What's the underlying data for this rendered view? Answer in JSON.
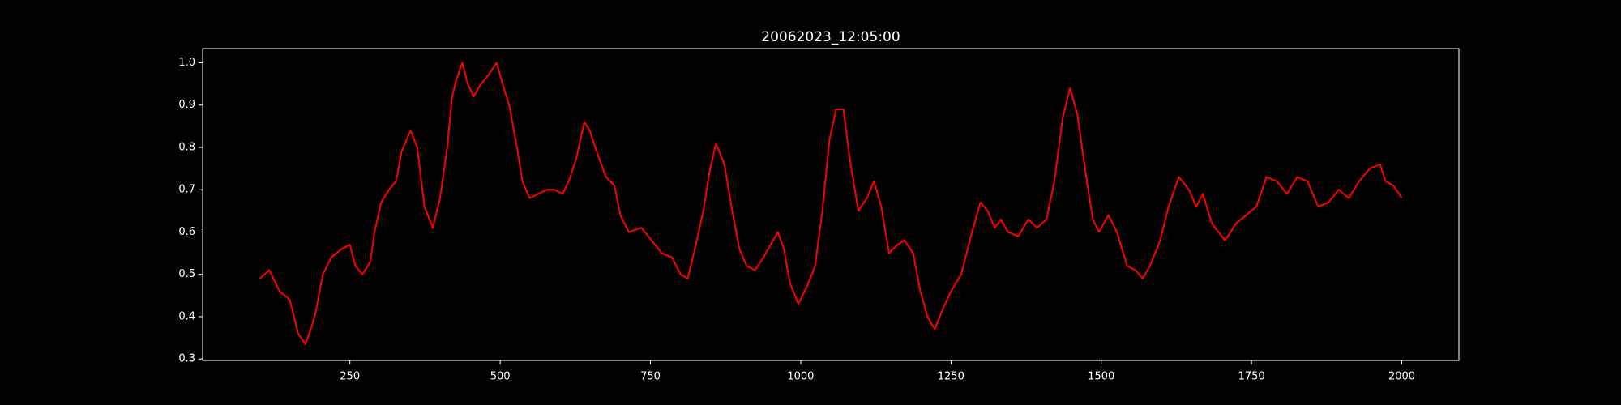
{
  "chart_data": {
    "type": "line",
    "title": "20062023_12:05:00",
    "x": [
      100,
      116,
      133,
      150,
      164,
      176,
      185,
      193,
      205,
      219,
      236,
      250,
      259,
      271,
      284,
      291,
      302,
      315,
      327,
      336,
      351,
      362,
      374,
      388,
      400,
      412,
      420,
      427,
      437,
      446,
      456,
      468,
      480,
      494,
      504,
      515,
      528,
      537,
      549,
      563,
      577,
      590,
      604,
      614,
      626,
      640,
      649,
      663,
      676,
      690,
      700,
      714,
      735,
      752,
      769,
      786,
      800,
      812,
      824,
      838,
      848,
      859,
      873,
      886,
      898,
      910,
      924,
      938,
      950,
      962,
      972,
      982,
      996,
      1010,
      1024,
      1036,
      1048,
      1059,
      1071,
      1082,
      1096,
      1110,
      1122,
      1134,
      1147,
      1161,
      1173,
      1187,
      1199,
      1211,
      1223,
      1237,
      1250,
      1267,
      1285,
      1299,
      1311,
      1323,
      1333,
      1345,
      1362,
      1379,
      1393,
      1409,
      1422,
      1436,
      1448,
      1460,
      1474,
      1486,
      1496,
      1512,
      1526,
      1543,
      1557,
      1569,
      1581,
      1598,
      1612,
      1629,
      1646,
      1658,
      1669,
      1684,
      1706,
      1724,
      1741,
      1758,
      1775,
      1792,
      1809,
      1826,
      1843,
      1861,
      1878,
      1895,
      1912,
      1929,
      1947,
      1964,
      1973,
      1986,
      2000
    ],
    "series": [
      {
        "color": "#ff0000",
        "values": [
          0.49,
          0.51,
          0.46,
          0.44,
          0.36,
          0.335,
          0.37,
          0.41,
          0.5,
          0.54,
          0.56,
          0.57,
          0.52,
          0.5,
          0.53,
          0.6,
          0.67,
          0.7,
          0.72,
          0.79,
          0.84,
          0.8,
          0.66,
          0.61,
          0.68,
          0.8,
          0.92,
          0.96,
          1.0,
          0.95,
          0.92,
          0.95,
          0.97,
          1.0,
          0.95,
          0.9,
          0.8,
          0.72,
          0.68,
          0.69,
          0.7,
          0.7,
          0.69,
          0.72,
          0.77,
          0.86,
          0.84,
          0.78,
          0.73,
          0.71,
          0.64,
          0.6,
          0.61,
          0.58,
          0.55,
          0.54,
          0.5,
          0.49,
          0.56,
          0.65,
          0.74,
          0.81,
          0.76,
          0.65,
          0.56,
          0.52,
          0.51,
          0.54,
          0.57,
          0.6,
          0.56,
          0.48,
          0.43,
          0.47,
          0.52,
          0.65,
          0.82,
          0.89,
          0.89,
          0.77,
          0.65,
          0.68,
          0.72,
          0.66,
          0.55,
          0.57,
          0.58,
          0.55,
          0.46,
          0.4,
          0.37,
          0.42,
          0.46,
          0.5,
          0.6,
          0.67,
          0.65,
          0.61,
          0.63,
          0.6,
          0.59,
          0.63,
          0.61,
          0.63,
          0.72,
          0.87,
          0.94,
          0.88,
          0.74,
          0.63,
          0.6,
          0.64,
          0.6,
          0.52,
          0.51,
          0.49,
          0.52,
          0.58,
          0.66,
          0.73,
          0.7,
          0.66,
          0.69,
          0.62,
          0.58,
          0.62,
          0.64,
          0.66,
          0.73,
          0.72,
          0.69,
          0.73,
          0.72,
          0.66,
          0.67,
          0.7,
          0.68,
          0.72,
          0.75,
          0.76,
          0.72,
          0.71,
          0.68
        ]
      }
    ],
    "xlim": [
      5,
      2095
    ],
    "xticks": [
      250,
      500,
      750,
      1000,
      1250,
      1500,
      1750,
      2000
    ],
    "ylim": [
      0.2965,
      1.0335
    ],
    "yticks": [
      {
        "value": 0.3,
        "label": "0.3"
      },
      {
        "value": 0.4,
        "label": "0.4"
      },
      {
        "value": 0.5,
        "label": "0.5"
      },
      {
        "value": 0.6,
        "label": "0.6"
      },
      {
        "value": 0.7,
        "label": "0.7"
      },
      {
        "value": 0.8,
        "label": "0.8"
      },
      {
        "value": 0.9,
        "label": "0.9"
      },
      {
        "value": 1.0,
        "label": "1.0"
      }
    ],
    "grid": false
  }
}
